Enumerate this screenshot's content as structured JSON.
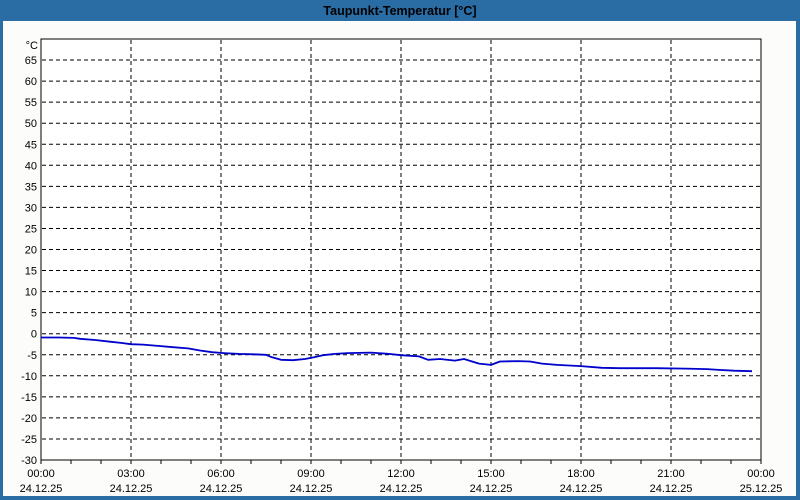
{
  "window": {
    "title": "Taupunkt-Temperatur [°C]"
  },
  "colors": {
    "titlebar_bg": "#2A6CA4",
    "window_border": "#2A6CA4",
    "titlebar_text": "#FFFFFF",
    "content_bg": "#FCFDFA",
    "plot_bg": "#FFFFFF",
    "grid": "#000000",
    "line": "#0000CC"
  },
  "chart_data": {
    "type": "line",
    "title": "Taupunkt-Temperatur [°C]",
    "y_unit_label": "°C",
    "ylim": [
      -30,
      70
    ],
    "xlim_hours": [
      0,
      24
    ],
    "grid": "dashed",
    "legend": "none",
    "y_ticks": [
      65,
      60,
      55,
      50,
      45,
      40,
      35,
      30,
      25,
      20,
      15,
      10,
      5,
      0,
      -5,
      -10,
      -15,
      -20,
      -25,
      -30
    ],
    "x_ticks": [
      {
        "hour": 0,
        "time": "00:00",
        "date": "24.12.25"
      },
      {
        "hour": 3,
        "time": "03:00",
        "date": "24.12.25"
      },
      {
        "hour": 6,
        "time": "06:00",
        "date": "24.12.25"
      },
      {
        "hour": 9,
        "time": "09:00",
        "date": "24.12.25"
      },
      {
        "hour": 12,
        "time": "12:00",
        "date": "24.12.25"
      },
      {
        "hour": 15,
        "time": "15:00",
        "date": "24.12.25"
      },
      {
        "hour": 18,
        "time": "18:00",
        "date": "24.12.25"
      },
      {
        "hour": 21,
        "time": "21:00",
        "date": "24.12.25"
      },
      {
        "hour": 24,
        "time": "00:00",
        "date": "25.12.25"
      }
    ],
    "minor_x_tick_every_hours": 1,
    "series": [
      {
        "name": "Taupunkt-Temperatur",
        "color": "#0000CC",
        "points": [
          [
            0.0,
            -0.9
          ],
          [
            0.6,
            -0.9
          ],
          [
            1.1,
            -1.0
          ],
          [
            1.3,
            -1.2
          ],
          [
            1.8,
            -1.5
          ],
          [
            2.3,
            -1.9
          ],
          [
            2.7,
            -2.2
          ],
          [
            3.0,
            -2.5
          ],
          [
            3.4,
            -2.6
          ],
          [
            3.9,
            -2.9
          ],
          [
            4.4,
            -3.2
          ],
          [
            4.9,
            -3.5
          ],
          [
            5.3,
            -4.0
          ],
          [
            5.7,
            -4.4
          ],
          [
            6.1,
            -4.6
          ],
          [
            6.6,
            -4.8
          ],
          [
            7.1,
            -4.9
          ],
          [
            7.5,
            -5.0
          ],
          [
            7.7,
            -5.6
          ],
          [
            8.0,
            -6.2
          ],
          [
            8.4,
            -6.3
          ],
          [
            8.8,
            -6.0
          ],
          [
            9.1,
            -5.6
          ],
          [
            9.4,
            -5.1
          ],
          [
            9.8,
            -4.8
          ],
          [
            10.2,
            -4.6
          ],
          [
            11.0,
            -4.5
          ],
          [
            11.6,
            -4.8
          ],
          [
            12.0,
            -5.1
          ],
          [
            12.6,
            -5.4
          ],
          [
            12.9,
            -6.2
          ],
          [
            13.3,
            -6.0
          ],
          [
            13.8,
            -6.4
          ],
          [
            14.1,
            -6.0
          ],
          [
            14.6,
            -7.1
          ],
          [
            15.0,
            -7.4
          ],
          [
            15.3,
            -6.6
          ],
          [
            15.9,
            -6.5
          ],
          [
            16.3,
            -6.6
          ],
          [
            16.7,
            -7.1
          ],
          [
            17.2,
            -7.4
          ],
          [
            18.0,
            -7.7
          ],
          [
            18.7,
            -8.1
          ],
          [
            19.3,
            -8.2
          ],
          [
            20.5,
            -8.2
          ],
          [
            21.5,
            -8.3
          ],
          [
            22.2,
            -8.4
          ],
          [
            22.6,
            -8.6
          ],
          [
            23.1,
            -8.8
          ],
          [
            23.7,
            -8.9
          ]
        ]
      }
    ]
  }
}
